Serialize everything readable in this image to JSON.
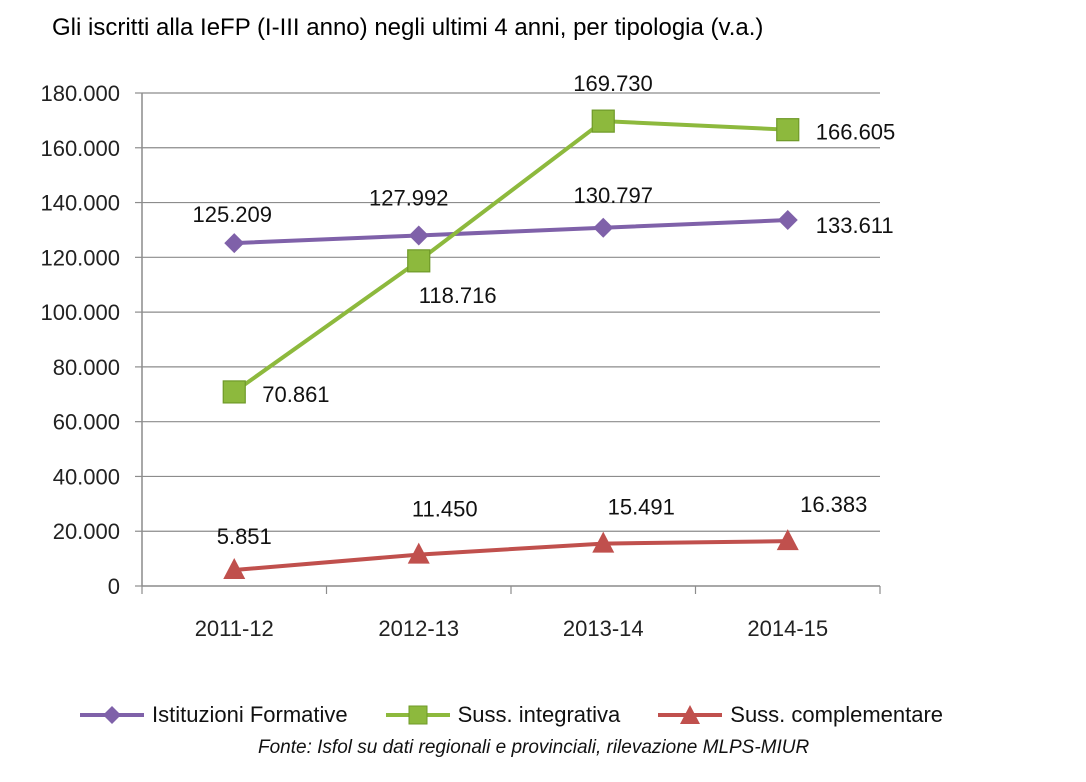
{
  "chart_data": {
    "type": "line",
    "title": "Gli iscritti alla IeFP (I-III anno) negli ultimi 4 anni, per tipologia (v.a.)",
    "xlabel": "",
    "ylabel": "",
    "categories": [
      "2011-12",
      "2012-13",
      "2013-14",
      "2014-15"
    ],
    "ylim": [
      0,
      180000
    ],
    "ytick_values": [
      0,
      20000,
      40000,
      60000,
      80000,
      100000,
      120000,
      140000,
      160000,
      180000
    ],
    "ytick_labels": [
      "0",
      "20.000",
      "40.000",
      "60.000",
      "80.000",
      "100.000",
      "120.000",
      "140.000",
      "160.000",
      "180.000"
    ],
    "grid": true,
    "legend_position": "bottom",
    "series": [
      {
        "name": "Istituzioni Formative",
        "color": "#7F61A9",
        "marker": "diamond",
        "values": [
          125209,
          127992,
          130797,
          133611
        ],
        "labels": [
          "125.209",
          "127.992",
          "130.797",
          "133.611"
        ]
      },
      {
        "name": "Suss. integrativa",
        "color": "#8DB93D",
        "marker": "square",
        "values": [
          70861,
          118716,
          169730,
          166605
        ],
        "labels": [
          "70.861",
          "118.716",
          "169.730",
          "166.605"
        ]
      },
      {
        "name": "Suss. complementare",
        "color": "#C0504D",
        "marker": "triangle",
        "values": [
          5851,
          11450,
          15491,
          16383
        ],
        "labels": [
          "5.851",
          "11.450",
          "15.491",
          "16.383"
        ]
      }
    ],
    "source": "Fonte: Isfol su dati regionali e provinciali, rilevazione MLPS-MIUR"
  }
}
